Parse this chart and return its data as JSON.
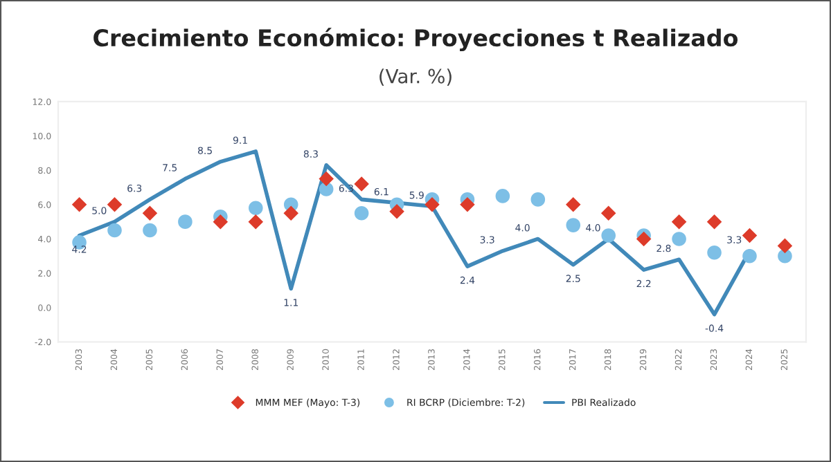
{
  "chart_data": {
    "type": "line",
    "title": "Crecimiento Económico: Proyecciones t Realizado",
    "subtitle": "(Var. %)",
    "categories": [
      "2003",
      "2004",
      "2005",
      "2006",
      "2007",
      "2008",
      "2009",
      "2010",
      "2011",
      "2012",
      "2013",
      "2014",
      "2015",
      "2016",
      "2017",
      "2018",
      "2019",
      "2022",
      "2023",
      "2024",
      "2025"
    ],
    "series": [
      {
        "name": "MMM MEF (Mayo: T-3)",
        "type": "scatter",
        "marker": "diamond",
        "color": "#dd3b2a",
        "values": [
          6.0,
          6.0,
          5.5,
          null,
          5.0,
          5.0,
          5.5,
          7.5,
          7.2,
          5.6,
          6.0,
          6.0,
          null,
          null,
          6.0,
          5.5,
          4.0,
          5.0,
          5.0,
          4.2,
          3.6
        ]
      },
      {
        "name": "RI BCRP (Diciembre: T-2)",
        "type": "scatter",
        "marker": "circle",
        "color": "#7dbfe6",
        "values": [
          3.8,
          4.5,
          4.5,
          5.0,
          5.3,
          5.8,
          6.0,
          6.9,
          5.5,
          6.0,
          6.3,
          6.3,
          6.5,
          6.3,
          4.8,
          4.2,
          4.2,
          4.0,
          3.2,
          3.0,
          3.0
        ]
      },
      {
        "name": "PBI Realizado",
        "color": "#4189b9",
        "values": [
          4.2,
          5.0,
          6.3,
          7.5,
          8.5,
          9.1,
          1.1,
          8.3,
          6.3,
          6.1,
          5.9,
          2.4,
          3.3,
          4.0,
          2.5,
          4.0,
          2.2,
          2.8,
          -0.4,
          3.3,
          null
        ],
        "value_labels": [
          "4.2",
          "5.0",
          "6.3",
          "7.5",
          "8.5",
          "9.1",
          "1.1",
          "8.3",
          "6.3",
          "6.1",
          "5.9",
          "2.4",
          "3.3",
          "4.0",
          "2.5",
          "4.0",
          "2.2",
          "2.8",
          "-0.4",
          "3.3",
          null
        ]
      }
    ],
    "ylim": [
      -2,
      12
    ],
    "yticks": [
      {
        "value": -2,
        "label": "-2.0"
      },
      {
        "value": 0,
        "label": "0.0"
      },
      {
        "value": 2,
        "label": "2.0"
      },
      {
        "value": 4,
        "label": "4.0"
      },
      {
        "value": 6,
        "label": "6.0"
      },
      {
        "value": 8,
        "label": "8.0"
      },
      {
        "value": 10,
        "label": "10.0"
      },
      {
        "value": 12,
        "label": "12.0"
      }
    ],
    "grid": false,
    "legend": "bottom"
  }
}
